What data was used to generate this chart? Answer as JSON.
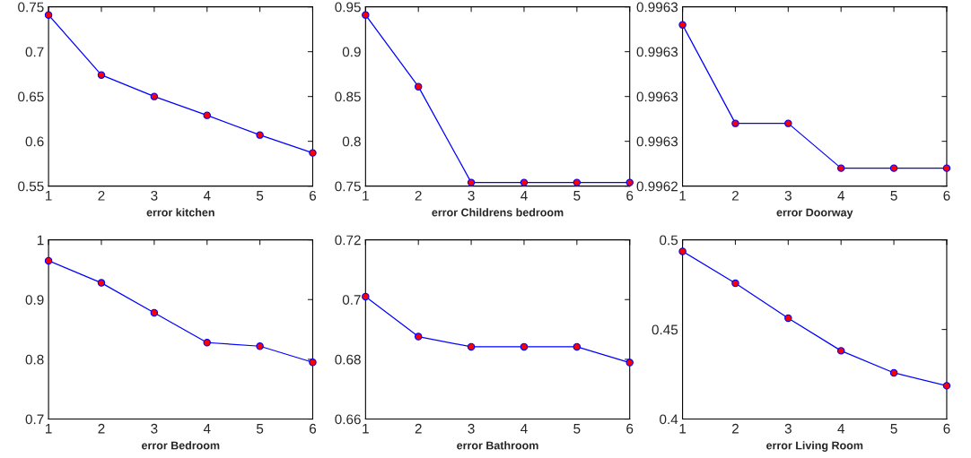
{
  "chart_data": [
    {
      "type": "line",
      "xlabel": "error kitchen",
      "x": [
        1,
        2,
        3,
        4,
        5,
        6
      ],
      "xlim": [
        1,
        6
      ],
      "xticks": [
        1,
        2,
        3,
        4,
        5,
        6
      ],
      "ylim": [
        0.55,
        0.75
      ],
      "yticks": [
        0.55,
        0.6,
        0.65,
        0.7,
        0.75
      ],
      "marker": "circle",
      "line_style": "solid",
      "series": [
        {
          "color": "#0000ff",
          "colors": [
            "#ff0000",
            "#ff0000",
            "#ff0000",
            "#ff0000",
            "#ff0000",
            "#ff0000"
          ],
          "values": [
            0.741,
            0.674,
            0.65,
            0.629,
            0.607,
            0.587
          ]
        }
      ]
    },
    {
      "type": "line",
      "xlabel": "error Childrens bedroom",
      "x": [
        1,
        2,
        3,
        4,
        5,
        6
      ],
      "xlim": [
        1,
        6
      ],
      "xticks": [
        1,
        2,
        3,
        4,
        5,
        6
      ],
      "ylim": [
        0.75,
        0.95
      ],
      "yticks": [
        0.75,
        0.8,
        0.85,
        0.9,
        0.95
      ],
      "marker": "circle",
      "line_style": "solid",
      "series": [
        {
          "color": "#0000ff",
          "colors": [
            "#ff0000",
            "#ff0000",
            "#ff0000",
            "#ff0000",
            "#ff0000",
            "#ff0000"
          ],
          "values": [
            0.941,
            0.861,
            0.754,
            0.754,
            0.754,
            0.754
          ]
        }
      ]
    },
    {
      "type": "line",
      "xlabel": "error Doorway",
      "x": [
        1,
        2,
        3,
        4,
        5,
        6
      ],
      "xlim": [
        1,
        6
      ],
      "xticks": [
        1,
        2,
        3,
        4,
        5,
        6
      ],
      "ylim": [
        0.99624,
        0.99628
      ],
      "yticks": [
        {
          "value": 0.99624,
          "label": "0.9962"
        },
        {
          "value": 0.99625,
          "label": "0.9963"
        },
        {
          "value": 0.99626,
          "label": "0.9963"
        },
        {
          "value": 0.99627,
          "label": "0.9963"
        },
        {
          "value": 0.99628,
          "label": "0.9963"
        }
      ],
      "marker": "circle",
      "line_style": "solid",
      "series": [
        {
          "color": "#0000ff",
          "colors": [
            "#ff0000",
            "#ff0000",
            "#ff0000",
            "#ff0000",
            "#ff0000",
            "#ff0000"
          ],
          "values": [
            0.996276,
            0.996254,
            0.996254,
            0.996244,
            0.996244,
            0.996244
          ]
        }
      ]
    },
    {
      "type": "line",
      "xlabel": "error Bedroom",
      "x": [
        1,
        2,
        3,
        4,
        5,
        6
      ],
      "xlim": [
        1,
        6
      ],
      "xticks": [
        1,
        2,
        3,
        4,
        5,
        6
      ],
      "ylim": [
        0.7,
        1
      ],
      "yticks": [
        0.7,
        0.8,
        0.9,
        1
      ],
      "marker": "circle",
      "line_style": "solid",
      "series": [
        {
          "color": "#0000ff",
          "colors": [
            "#ff0000",
            "#ff0000",
            "#ff0000",
            "#ff0000",
            "#ff0000",
            "#ff0000"
          ],
          "values": [
            0.965,
            0.928,
            0.878,
            0.828,
            0.822,
            0.795
          ]
        }
      ]
    },
    {
      "type": "line",
      "xlabel": "error Bathroom",
      "x": [
        1,
        2,
        3,
        4,
        5,
        6
      ],
      "xlim": [
        1,
        6
      ],
      "xticks": [
        1,
        2,
        3,
        4,
        5,
        6
      ],
      "ylim": [
        0.66,
        0.72
      ],
      "yticks": [
        0.66,
        0.68,
        0.7,
        0.72
      ],
      "marker": "circle",
      "line_style": "solid",
      "series": [
        {
          "color": "#0000ff",
          "colors": [
            "#ff0000",
            "#ff0000",
            "#ff0000",
            "#ff0000",
            "#ff0000",
            "#ff0000"
          ],
          "values": [
            0.701,
            0.6876,
            0.6842,
            0.6842,
            0.6842,
            0.6789
          ]
        }
      ]
    },
    {
      "type": "line",
      "xlabel": "error Living Room",
      "x": [
        1,
        2,
        3,
        4,
        5,
        6
      ],
      "xlim": [
        1,
        6
      ],
      "xticks": [
        1,
        2,
        3,
        4,
        5,
        6
      ],
      "ylim": [
        0.4,
        0.5
      ],
      "yticks": [
        0.4,
        0.45,
        0.5
      ],
      "marker": "circle",
      "line_style": "solid",
      "series": [
        {
          "color": "#0000ff",
          "colors": [
            "#ff0000",
            "#ff0000",
            "#ff0000",
            "#ff0000",
            "#ff0000",
            "#ff0000"
          ],
          "values": [
            0.4936,
            0.4758,
            0.4563,
            0.4381,
            0.4258,
            0.4186
          ]
        }
      ]
    }
  ]
}
